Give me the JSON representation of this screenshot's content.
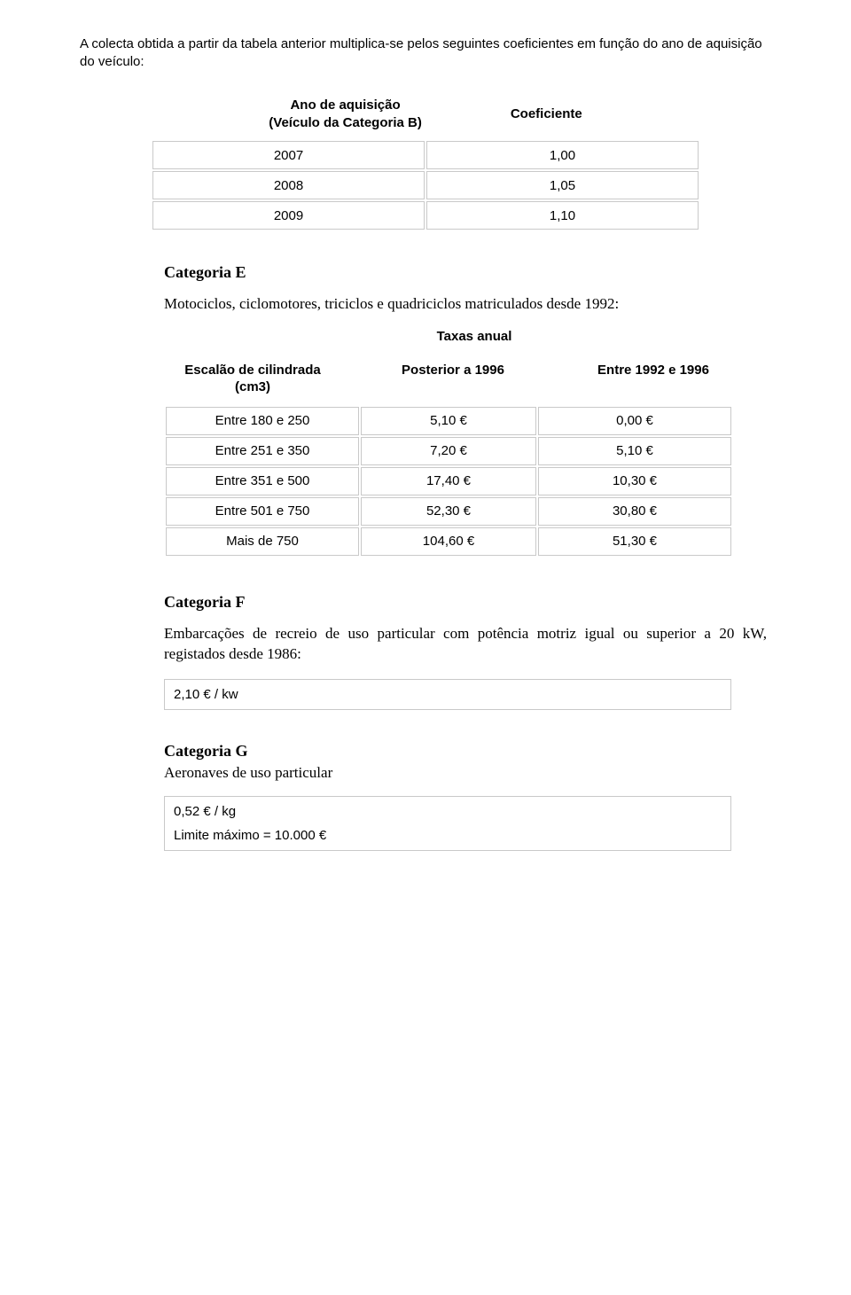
{
  "intro": "A colecta obtida a partir da tabela anterior multiplica-se pelos seguintes coeficientes em função do ano de aquisição do veículo:",
  "coef_header": {
    "left_line1": "Ano de aquisição",
    "left_line2": "(Veículo da Categoria B)",
    "right": "Coeficiente"
  },
  "coef_rows": [
    {
      "year": "2007",
      "coef": "1,00"
    },
    {
      "year": "2008",
      "coef": "1,05"
    },
    {
      "year": "2009",
      "coef": "1,10"
    }
  ],
  "cat_e": {
    "title": "Categoria E",
    "desc": "Motociclos, ciclomotores, triciclos e quadriciclos matriculados desde 1992:",
    "taxas_label": "Taxas anual",
    "headers": {
      "h1_line1": "Escalão de cilindrada",
      "h1_line2": "(cm3)",
      "h2": "Posterior a 1996",
      "h3": "Entre 1992 e 1996"
    },
    "rows": [
      {
        "range": "Entre 180 e 250",
        "v1": "5,10 €",
        "v2": "0,00 €"
      },
      {
        "range": "Entre 251 e 350",
        "v1": "7,20 €",
        "v2": "5,10 €"
      },
      {
        "range": "Entre 351 e 500",
        "v1": "17,40 €",
        "v2": "10,30 €"
      },
      {
        "range": "Entre 501 e 750",
        "v1": "52,30 €",
        "v2": "30,80 €"
      },
      {
        "range": "Mais de 750",
        "v1": "104,60 €",
        "v2": "51,30 €"
      }
    ]
  },
  "cat_f": {
    "title": "Categoria F",
    "desc": "Embarcações de recreio de uso particular com potência motriz igual ou superior a 20 kW, registados desde 1986:",
    "box": "2,10 € / kw"
  },
  "cat_g": {
    "title": "Categoria G",
    "sub": "Aeronaves de uso particular",
    "box_line1": "0,52 € / kg",
    "box_line2": "Limite máximo = 10.000 €"
  }
}
